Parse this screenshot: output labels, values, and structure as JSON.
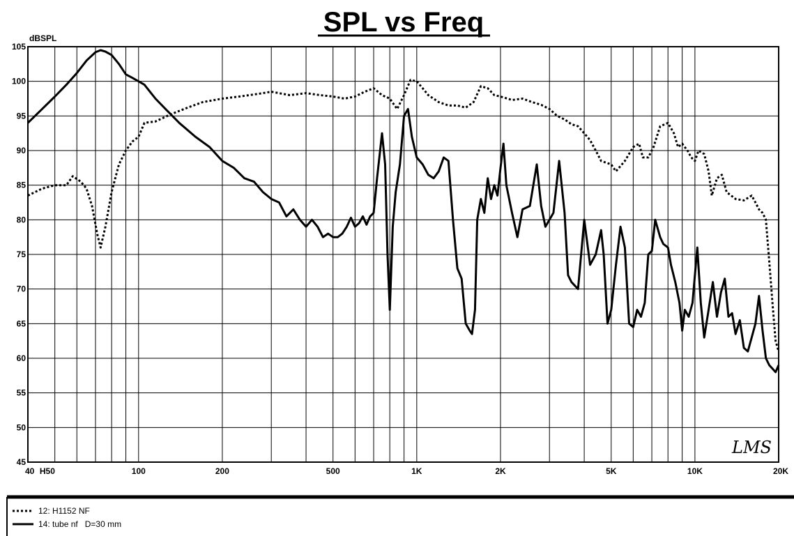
{
  "chart_data": {
    "type": "line",
    "title": "SPL vs Freq",
    "ylabel": "dBSPL",
    "xlabel": "",
    "x_scale": "log",
    "xlim": [
      40,
      20000
    ],
    "ylim": [
      45,
      105
    ],
    "y_ticks": [
      105,
      100,
      95,
      90,
      85,
      80,
      75,
      70,
      65,
      60,
      55,
      50,
      45
    ],
    "x_tick_labels": [
      {
        "value": 40,
        "label": "40"
      },
      {
        "value": 47,
        "label": "H50"
      },
      {
        "value": 100,
        "label": "100"
      },
      {
        "value": 200,
        "label": "200"
      },
      {
        "value": 500,
        "label": "500"
      },
      {
        "value": 1000,
        "label": "1K"
      },
      {
        "value": 2000,
        "label": "2K"
      },
      {
        "value": 5000,
        "label": "5K"
      },
      {
        "value": 10000,
        "label": "10K"
      },
      {
        "value": 20000,
        "label": "20K"
      }
    ],
    "grid": true,
    "legend_position": "bottom-left",
    "signature": "LMS",
    "series": [
      {
        "name": "12: H1152 NF",
        "style": "dotted",
        "color": "#000000",
        "points": [
          [
            40,
            83.5
          ],
          [
            45,
            84.5
          ],
          [
            50,
            85
          ],
          [
            55,
            85
          ],
          [
            58,
            86.3
          ],
          [
            62,
            85.5
          ],
          [
            65,
            84.5
          ],
          [
            68,
            82
          ],
          [
            71,
            78
          ],
          [
            73,
            76
          ],
          [
            76,
            79
          ],
          [
            80,
            84
          ],
          [
            85,
            88
          ],
          [
            90,
            90
          ],
          [
            95,
            91.3
          ],
          [
            100,
            92
          ],
          [
            105,
            94
          ],
          [
            115,
            94.2
          ],
          [
            130,
            95.2
          ],
          [
            150,
            96.2
          ],
          [
            170,
            97
          ],
          [
            200,
            97.5
          ],
          [
            230,
            97.8
          ],
          [
            250,
            98
          ],
          [
            280,
            98.3
          ],
          [
            300,
            98.5
          ],
          [
            350,
            98
          ],
          [
            400,
            98.3
          ],
          [
            450,
            98
          ],
          [
            500,
            97.8
          ],
          [
            550,
            97.5
          ],
          [
            600,
            97.8
          ],
          [
            650,
            98.5
          ],
          [
            700,
            99
          ],
          [
            750,
            98
          ],
          [
            800,
            97.5
          ],
          [
            850,
            96
          ],
          [
            900,
            98
          ],
          [
            950,
            100.2
          ],
          [
            1000,
            100
          ],
          [
            1050,
            99
          ],
          [
            1100,
            98
          ],
          [
            1200,
            97
          ],
          [
            1300,
            96.5
          ],
          [
            1400,
            96.5
          ],
          [
            1500,
            96.2
          ],
          [
            1600,
            97
          ],
          [
            1700,
            99.3
          ],
          [
            1800,
            99
          ],
          [
            1900,
            98
          ],
          [
            2000,
            97.8
          ],
          [
            2200,
            97.3
          ],
          [
            2400,
            97.5
          ],
          [
            2600,
            97
          ],
          [
            2800,
            96.6
          ],
          [
            3000,
            96
          ],
          [
            3200,
            95
          ],
          [
            3400,
            94.5
          ],
          [
            3600,
            93.8
          ],
          [
            3800,
            93.5
          ],
          [
            4000,
            92.5
          ],
          [
            4200,
            91.5
          ],
          [
            4400,
            90
          ],
          [
            4600,
            88.5
          ],
          [
            5000,
            88
          ],
          [
            5200,
            87
          ],
          [
            5600,
            88.5
          ],
          [
            6000,
            90.5
          ],
          [
            6300,
            91
          ],
          [
            6500,
            89
          ],
          [
            6800,
            89
          ],
          [
            7100,
            90.5
          ],
          [
            7500,
            93.5
          ],
          [
            8000,
            94
          ],
          [
            8400,
            92.5
          ],
          [
            8700,
            90.5
          ],
          [
            9000,
            91
          ],
          [
            9400,
            90
          ],
          [
            9700,
            89
          ],
          [
            10000,
            88.5
          ],
          [
            10300,
            90
          ],
          [
            10800,
            89.5
          ],
          [
            11200,
            87
          ],
          [
            11500,
            83.5
          ],
          [
            12000,
            86
          ],
          [
            12500,
            86.5
          ],
          [
            13000,
            84
          ],
          [
            13500,
            83.5
          ],
          [
            14000,
            83
          ],
          [
            15000,
            82.8
          ],
          [
            16000,
            83.5
          ],
          [
            16500,
            82.5
          ],
          [
            17000,
            81.5
          ],
          [
            17500,
            81
          ],
          [
            18000,
            80
          ],
          [
            18500,
            74
          ],
          [
            19000,
            68
          ],
          [
            19500,
            62.5
          ],
          [
            20000,
            61
          ]
        ]
      },
      {
        "name": "14: tube nf   D=30 mm",
        "style": "solid",
        "color": "#000000",
        "points": [
          [
            40,
            94
          ],
          [
            45,
            96
          ],
          [
            50,
            97.8
          ],
          [
            55,
            99.5
          ],
          [
            60,
            101.2
          ],
          [
            65,
            103
          ],
          [
            70,
            104.2
          ],
          [
            73,
            104.5
          ],
          [
            76,
            104.3
          ],
          [
            80,
            103.8
          ],
          [
            85,
            102.5
          ],
          [
            90,
            101
          ],
          [
            95,
            100.5
          ],
          [
            100,
            100
          ],
          [
            105,
            99.5
          ],
          [
            115,
            97.5
          ],
          [
            125,
            96
          ],
          [
            140,
            94
          ],
          [
            160,
            92
          ],
          [
            180,
            90.5
          ],
          [
            200,
            88.5
          ],
          [
            220,
            87.5
          ],
          [
            240,
            86
          ],
          [
            260,
            85.5
          ],
          [
            280,
            84
          ],
          [
            300,
            83
          ],
          [
            320,
            82.5
          ],
          [
            340,
            80.5
          ],
          [
            360,
            81.5
          ],
          [
            380,
            80
          ],
          [
            400,
            79
          ],
          [
            420,
            80
          ],
          [
            440,
            79
          ],
          [
            460,
            77.5
          ],
          [
            480,
            78
          ],
          [
            500,
            77.5
          ],
          [
            520,
            77.5
          ],
          [
            540,
            78
          ],
          [
            560,
            79
          ],
          [
            580,
            80.3
          ],
          [
            600,
            79
          ],
          [
            620,
            79.5
          ],
          [
            640,
            80.5
          ],
          [
            660,
            79.3
          ],
          [
            680,
            80.5
          ],
          [
            700,
            81
          ],
          [
            720,
            86
          ],
          [
            750,
            92.5
          ],
          [
            770,
            88
          ],
          [
            785,
            75
          ],
          [
            800,
            67
          ],
          [
            820,
            79
          ],
          [
            840,
            84
          ],
          [
            870,
            88
          ],
          [
            900,
            95
          ],
          [
            930,
            96
          ],
          [
            960,
            92
          ],
          [
            1000,
            89
          ],
          [
            1050,
            88
          ],
          [
            1100,
            86.5
          ],
          [
            1150,
            86
          ],
          [
            1200,
            87
          ],
          [
            1250,
            89
          ],
          [
            1300,
            88.5
          ],
          [
            1350,
            80
          ],
          [
            1400,
            73
          ],
          [
            1450,
            71.5
          ],
          [
            1500,
            65
          ],
          [
            1550,
            64
          ],
          [
            1580,
            63.5
          ],
          [
            1620,
            67
          ],
          [
            1650,
            80
          ],
          [
            1700,
            83
          ],
          [
            1750,
            81
          ],
          [
            1800,
            86
          ],
          [
            1850,
            83
          ],
          [
            1900,
            85
          ],
          [
            1950,
            83.5
          ],
          [
            2000,
            87.5
          ],
          [
            2050,
            91
          ],
          [
            2100,
            85
          ],
          [
            2200,
            81
          ],
          [
            2300,
            77.5
          ],
          [
            2400,
            81.5
          ],
          [
            2550,
            82
          ],
          [
            2700,
            88
          ],
          [
            2800,
            82
          ],
          [
            2900,
            79
          ],
          [
            3000,
            80
          ],
          [
            3100,
            81
          ],
          [
            3250,
            88.5
          ],
          [
            3400,
            81
          ],
          [
            3500,
            72
          ],
          [
            3600,
            71
          ],
          [
            3800,
            70
          ],
          [
            4000,
            80
          ],
          [
            4200,
            73.5
          ],
          [
            4400,
            75
          ],
          [
            4600,
            78.5
          ],
          [
            4700,
            75
          ],
          [
            4850,
            65
          ],
          [
            5000,
            67
          ],
          [
            5200,
            73.5
          ],
          [
            5400,
            79
          ],
          [
            5600,
            76
          ],
          [
            5800,
            65
          ],
          [
            6000,
            64.5
          ],
          [
            6200,
            67
          ],
          [
            6400,
            66
          ],
          [
            6600,
            68
          ],
          [
            6800,
            75
          ],
          [
            7000,
            75.5
          ],
          [
            7200,
            80
          ],
          [
            7500,
            77.5
          ],
          [
            7700,
            76.5
          ],
          [
            8000,
            76
          ],
          [
            8200,
            73.5
          ],
          [
            8500,
            71
          ],
          [
            8800,
            68
          ],
          [
            9000,
            64
          ],
          [
            9200,
            67
          ],
          [
            9500,
            66
          ],
          [
            9800,
            68
          ],
          [
            10200,
            76
          ],
          [
            10500,
            68
          ],
          [
            10800,
            63
          ],
          [
            11200,
            67
          ],
          [
            11600,
            71
          ],
          [
            12000,
            66
          ],
          [
            12400,
            69.5
          ],
          [
            12800,
            71.5
          ],
          [
            13200,
            66
          ],
          [
            13600,
            66.5
          ],
          [
            14000,
            63.5
          ],
          [
            14500,
            65.5
          ],
          [
            15000,
            61.5
          ],
          [
            15500,
            61
          ],
          [
            16000,
            63
          ],
          [
            16500,
            65
          ],
          [
            17000,
            69
          ],
          [
            17500,
            64
          ],
          [
            18000,
            60
          ],
          [
            18500,
            59
          ],
          [
            19000,
            58.5
          ],
          [
            19500,
            58
          ],
          [
            20000,
            59
          ]
        ]
      }
    ]
  }
}
